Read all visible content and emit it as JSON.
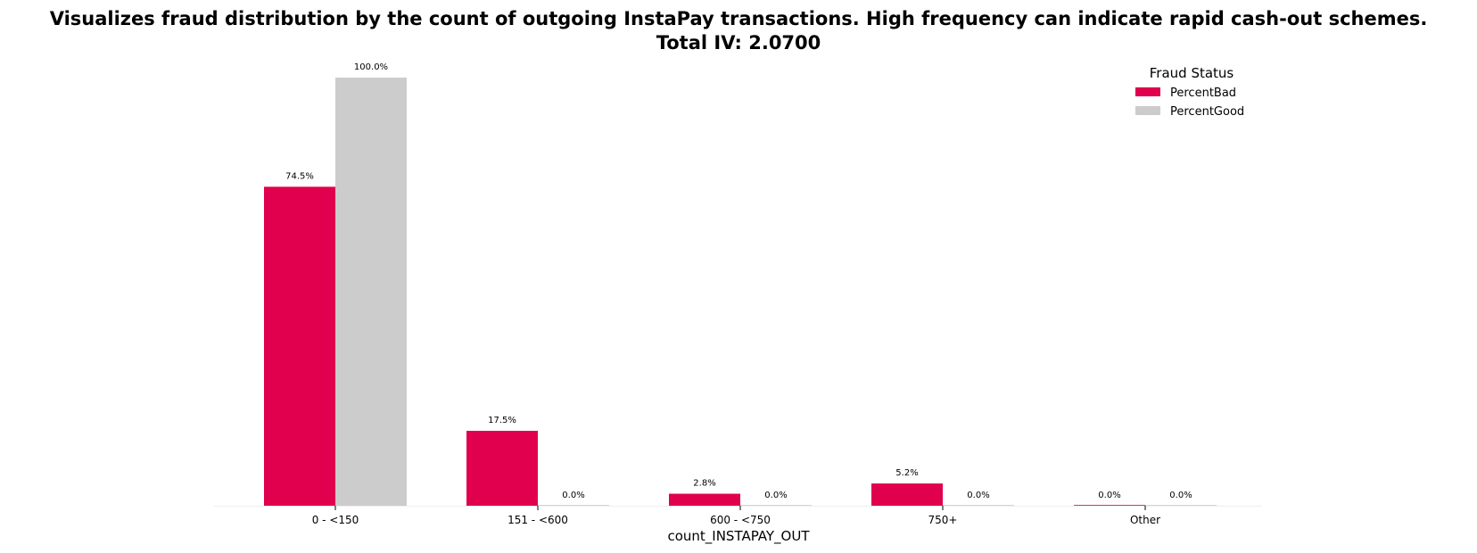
{
  "chart_data": {
    "type": "bar",
    "title": "Visualizes fraud distribution by the count of outgoing InstaPay transactions. High frequency can indicate rapid cash-out schemes.",
    "subtitle": "Total IV: 2.0700",
    "xlabel": "count_INSTAPAY_OUT",
    "ylabel": "",
    "categories": [
      "0 - <150",
      "151 - <600",
      "600 - <750",
      "750+",
      "Other"
    ],
    "series": [
      {
        "name": "PercentBad",
        "color": "#e0004d",
        "values": [
          74.5,
          17.5,
          2.8,
          5.2,
          0.0
        ],
        "labels": [
          "74.5%",
          "17.5%",
          "2.8%",
          "5.2%",
          "0.0%"
        ]
      },
      {
        "name": "PercentGood",
        "color": "#cccccc",
        "values": [
          100.0,
          0.0,
          0.0,
          0.0,
          0.0
        ],
        "labels": [
          "100.0%",
          "0.0%",
          "0.0%",
          "0.0%",
          "0.0%"
        ]
      }
    ],
    "ylim": [
      0,
      105
    ],
    "grid": false,
    "legend": {
      "title": "Fraud Status",
      "position": "top-right"
    }
  }
}
